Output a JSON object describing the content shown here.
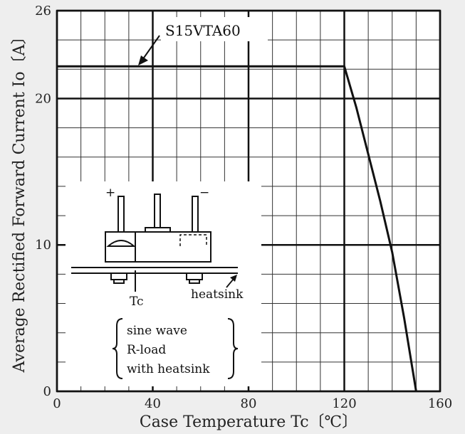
{
  "chart_data": {
    "type": "line",
    "title": "",
    "xlabel": "Case Temperature Tc〔℃〕",
    "ylabel": "Average Rectified Forward Current Io〔A〕",
    "xlim": [
      0,
      160
    ],
    "ylim": [
      0,
      26
    ],
    "x_major_ticks": [
      "0",
      "40",
      "80",
      "120",
      "160"
    ],
    "y_major_ticks": [
      "0",
      "10",
      "20",
      "26"
    ],
    "x_minor_step": 10,
    "y_minor_step": 2,
    "grid": true,
    "series": [
      {
        "name": "S15VTA60",
        "x": [
          0,
          120,
          125,
          130,
          135,
          140,
          145,
          150
        ],
        "y": [
          22.2,
          22.2,
          19.4,
          16.2,
          13.0,
          9.5,
          5.0,
          0
        ]
      }
    ],
    "annotations": {
      "series_label": "S15VTA60",
      "inset": {
        "plus": "+",
        "minus": "−",
        "tc_label": "Tc",
        "heatsink_label": "heatsink",
        "conditions": [
          "sine wave",
          "R-load",
          "with heatsink"
        ]
      }
    }
  }
}
